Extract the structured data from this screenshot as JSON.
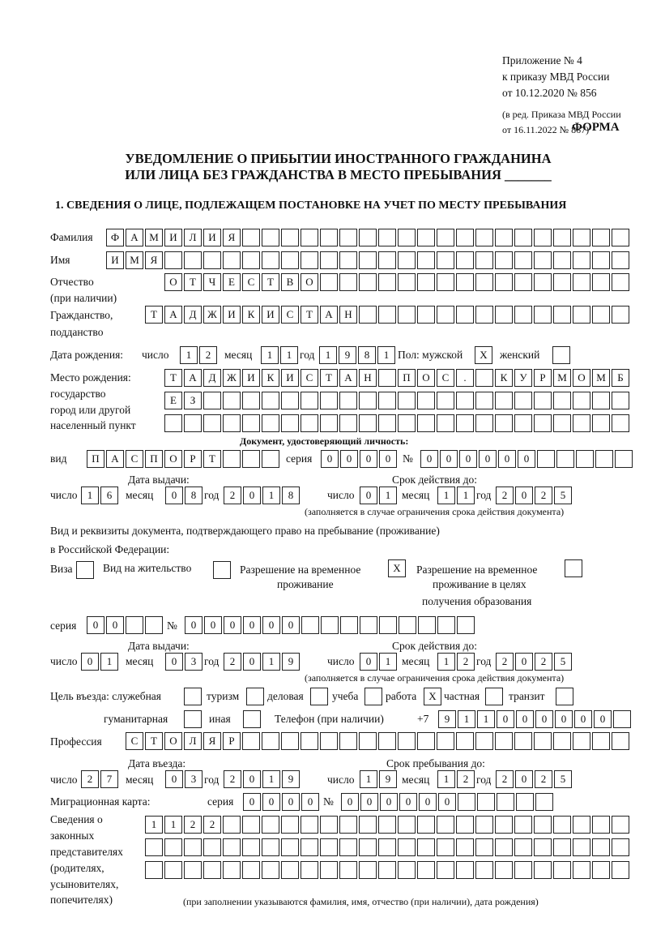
{
  "header": {
    "appendix": "Приложение № 4",
    "order": "к приказу МВД России",
    "order_date": "от 10.12.2020 № 856",
    "edition": "(в ред. Приказа МВД России",
    "edition_date": "от 16.11.2022 № 867)",
    "form_label": "ФОРМА",
    "title_line1": "УВЕДОМЛЕНИЕ О ПРИБЫТИИ ИНОСТРАННОГО ГРАЖДАНИНА",
    "title_line2": "ИЛИ ЛИЦА БЕЗ ГРАЖДАНСТВА В МЕСТО ПРЕБЫВАНИЯ _______",
    "section1": "1. СВЕДЕНИЯ О ЛИЦЕ, ПОДЛЕЖАЩЕМ ПОСТАНОВКЕ НА УЧЕТ ПО МЕСТУ ПРЕБЫВАНИЯ"
  },
  "labels": {
    "surname": "Фамилия",
    "name": "Имя",
    "patronymic": "Отчество",
    "patronymic_note": "(при наличии)",
    "citizenship": "Гражданство,",
    "citizenship2": "подданство",
    "birth_date": "Дата рождения:",
    "day": "число",
    "month": "месяц",
    "year": "год",
    "sex": "Пол: мужской",
    "female": "женский",
    "birth_place": "Место рождения:",
    "birth_place2": "государство",
    "birth_place3": "город или другой",
    "birth_place4": "населенный пункт",
    "id_doc": "Документ, удостоверяющий личность:",
    "kind": "вид",
    "series": "серия",
    "number": "№",
    "issue_date": "Дата выдачи:",
    "valid_until": "Срок действия до:",
    "validity_note": "(заполняется в случае ограничения срока действия документа)",
    "stay_doc": "Вид и реквизиты документа, подтверждающего право на пребывание (проживание)",
    "stay_doc2": "в Российской Федерации:",
    "visa": "Виза",
    "residence": "Вид на жительство",
    "temp_permit": "Разрешение на временное",
    "temp_permit2": "проживание",
    "edu_permit": "Разрешение на временное",
    "edu_permit2": "проживание в целях",
    "edu_permit3": "получения образования",
    "purpose": "Цель въезда: служебная",
    "tourism": "туризм",
    "business": "деловая",
    "study": "учеба",
    "work": "работа",
    "private": "частная",
    "transit": "транзит",
    "humanitarian": "гуманитарная",
    "other": "иная",
    "phone": "Телефон (при наличии)",
    "phone_prefix": "+7",
    "profession": "Профессия",
    "entry_date": "Дата въезда:",
    "stay_until": "Срок пребывания до:",
    "migration_card": "Миграционная карта:",
    "reps1": "Сведения о",
    "reps2": "законных",
    "reps3": "представителях",
    "reps4": "(родителях,",
    "reps5": "усыновителях,",
    "reps6": "попечителях)",
    "reps_note": "(при заполнении указываются фамилия, имя, отчество (при наличии), дата рождения)"
  },
  "values": {
    "surname": "ФАМИЛИЯ",
    "name": "ИМЯ",
    "patronymic": "ОТЧЕСТВО",
    "citizenship": "ТАДЖИКИСТАН",
    "birth_day": "12",
    "birth_month": "11",
    "birth_year": "1981",
    "sex_male": "X",
    "sex_female": "",
    "birth_place1": "ТАДЖИКИСТАН ПОС. КУРМОМБ",
    "birth_place2": "ЕЗ",
    "birth_place3": "",
    "id_kind": "ПАСПОРТ",
    "id_series": "0000",
    "id_number": "000000",
    "id_issue_day": "16",
    "id_issue_month": "08",
    "id_issue_year": "2018",
    "id_valid_day": "01",
    "id_valid_month": "11",
    "id_valid_year": "2025",
    "visa": "",
    "residence": "",
    "temp_permit": "X",
    "edu_permit": "",
    "stay_series": "00",
    "stay_number": "000000",
    "stay_issue_day": "01",
    "stay_issue_month": "03",
    "stay_issue_year": "2019",
    "stay_valid_day": "01",
    "stay_valid_month": "12",
    "stay_valid_year": "2025",
    "p_service": "",
    "p_tourism": "",
    "p_business": "",
    "p_study": "",
    "p_work": "X",
    "p_private": "",
    "p_transit": "",
    "p_humanitarian": "",
    "p_other": "",
    "phone": "911000000",
    "profession": "СТОЛЯР",
    "entry_day": "27",
    "entry_month": "03",
    "entry_year": "2019",
    "until_day": "19",
    "until_month": "12",
    "until_year": "2025",
    "mc_series": "0000",
    "mc_number": "000000",
    "reps1": "1122",
    "reps2": "",
    "reps3": ""
  }
}
